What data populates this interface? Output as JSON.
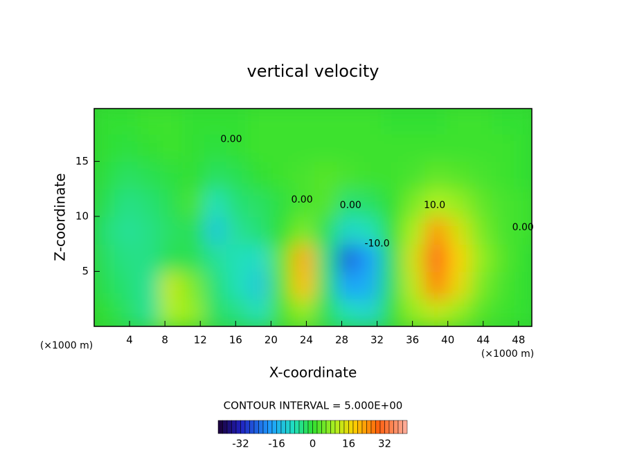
{
  "chart_data": {
    "type": "heatmap",
    "title": "vertical velocity",
    "xlabel": "X-coordinate",
    "ylabel": "Z-coordinate",
    "x_unit": "(×1000 m)",
    "y_unit": "(×1000 m)",
    "note": "CONTOUR INTERVAL = 5.000E+00",
    "xlim": [
      0,
      49.5
    ],
    "ylim": [
      0,
      19.8
    ],
    "xticks": [
      4,
      8,
      12,
      16,
      20,
      24,
      28,
      32,
      36,
      40,
      44,
      48
    ],
    "yticks": [
      5,
      10,
      15
    ],
    "x": [
      1.25,
      3.75,
      6.25,
      8.75,
      11.25,
      13.75,
      16.25,
      18.75,
      21.25,
      23.75,
      26.25,
      28.75,
      31.25,
      33.75,
      36.25,
      38.75,
      41.25,
      43.75,
      46.25,
      48.75
    ],
    "y": [
      1.25,
      3.75,
      6.25,
      8.75,
      11.25,
      13.75,
      16.25,
      18.75
    ],
    "z": [
      [
        0,
        -3,
        -6,
        10,
        8,
        -3,
        -5,
        -8,
        2,
        8,
        -2,
        -8,
        -10,
        0,
        8,
        12,
        8,
        3,
        1,
        0
      ],
      [
        -2,
        -4,
        -6,
        12,
        6,
        -4,
        -8,
        -12,
        3,
        20,
        -3,
        -18,
        -16,
        -2,
        12,
        26,
        16,
        6,
        2,
        0
      ],
      [
        -3,
        -5,
        -5,
        -2,
        -2,
        -6,
        -8,
        -9,
        4,
        22,
        -4,
        -25,
        -18,
        -2,
        14,
        30,
        18,
        8,
        3,
        0
      ],
      [
        -4,
        -6,
        -5,
        -3,
        -2,
        -12,
        -6,
        -4,
        0,
        6,
        -2,
        -10,
        -8,
        0,
        10,
        24,
        14,
        6,
        2,
        1
      ],
      [
        -2,
        -5,
        -4,
        -2,
        2,
        -8,
        -4,
        -3,
        -1,
        2,
        3,
        -4,
        -3,
        0,
        6,
        10,
        8,
        4,
        2,
        1
      ],
      [
        -1,
        -3,
        -2,
        -1,
        0,
        -3,
        -2,
        0,
        1,
        2,
        3,
        2,
        1,
        1,
        2,
        4,
        3,
        2,
        1,
        0
      ],
      [
        0,
        -1,
        0,
        1,
        0,
        -1,
        0,
        1,
        1,
        1,
        1,
        1,
        1,
        1,
        1,
        1,
        1,
        1,
        1,
        0
      ],
      [
        0,
        0,
        1,
        1,
        0,
        0,
        0,
        1,
        1,
        1,
        1,
        1,
        1,
        0,
        0,
        0,
        1,
        1,
        0,
        0
      ]
    ],
    "annotations": [
      {
        "text": "0.00",
        "x": 15.5,
        "y": 17
      },
      {
        "text": "0.00",
        "x": 23.5,
        "y": 11.5
      },
      {
        "text": "0.00",
        "x": 29,
        "y": 11
      },
      {
        "text": "-10.0",
        "x": 32,
        "y": 7.5
      },
      {
        "text": "10.0",
        "x": 38.5,
        "y": 11
      },
      {
        "text": "0.00",
        "x": 48.5,
        "y": 9
      }
    ],
    "colorbar": {
      "range": [
        -42,
        42
      ],
      "ticks": [
        -32,
        -16,
        0,
        16,
        32
      ]
    }
  }
}
